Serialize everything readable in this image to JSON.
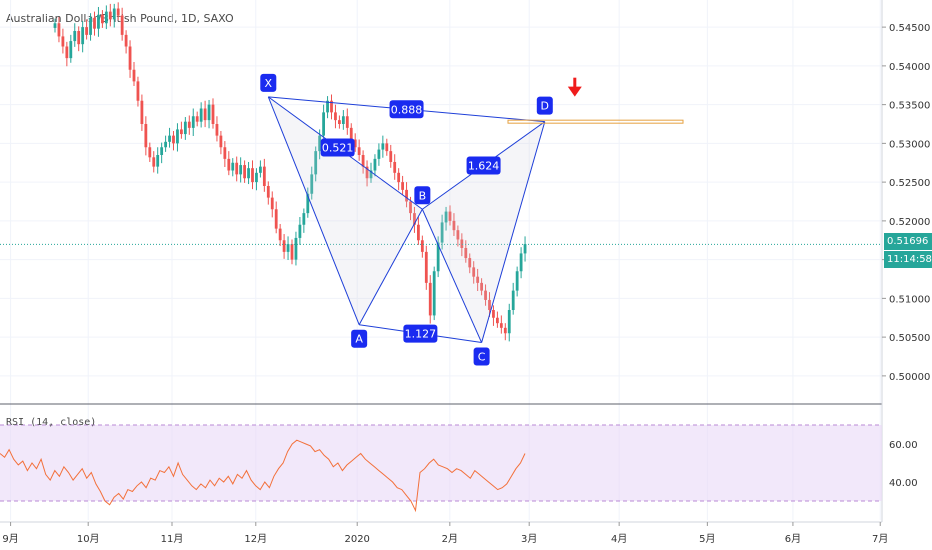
{
  "symbol_line": "Australian Dollar/British Pound, 1D, SAXO",
  "rsi_label": "RSI (14, close)",
  "price_tag": "0.51696",
  "countdown_tag": "11:14:58",
  "colors": {
    "up": "#26a69a",
    "down": "#ef5350",
    "pattern": "#1e3fd8",
    "pattern_label_bg": "#1a2bf0",
    "rsi_line": "#f3703a",
    "rsi_band": "#e9d8f7",
    "arrow": "#ef1c1c",
    "target_line": "#e5a040"
  },
  "chart_data": {
    "type": "candlestick",
    "price_axis": {
      "ylim": [
        0.4965,
        0.5485
      ],
      "ticks": [
        "0.50000",
        "0.50500",
        "0.51000",
        "0.51500",
        "0.52000",
        "0.52500",
        "0.53000",
        "0.53500",
        "0.54000",
        "0.54500"
      ]
    },
    "time_axis": {
      "labels": [
        "9月",
        "10月",
        "11月",
        "12月",
        "2020",
        "2月",
        "3月",
        "4月",
        "5月",
        "6月",
        "7月"
      ]
    },
    "current_price": 0.51696,
    "candles_close": [
      0.5455,
      0.5438,
      0.5425,
      0.541,
      0.5432,
      0.5445,
      0.5428,
      0.545,
      0.544,
      0.5462,
      0.5448,
      0.5466,
      0.5455,
      0.547,
      0.546,
      0.5474,
      0.5465,
      0.544,
      0.5425,
      0.5395,
      0.538,
      0.5355,
      0.5325,
      0.5295,
      0.5282,
      0.527,
      0.5285,
      0.5295,
      0.5302,
      0.531,
      0.53,
      0.5318,
      0.5312,
      0.5328,
      0.532,
      0.5335,
      0.5328,
      0.5345,
      0.533,
      0.535,
      0.5325,
      0.531,
      0.5295,
      0.528,
      0.5265,
      0.5275,
      0.526,
      0.5272,
      0.5255,
      0.5268,
      0.525,
      0.5262,
      0.527,
      0.5245,
      0.523,
      0.5215,
      0.519,
      0.5175,
      0.516,
      0.517,
      0.515,
      0.5178,
      0.5195,
      0.521,
      0.5235,
      0.526,
      0.529,
      0.531,
      0.534,
      0.5355,
      0.534,
      0.533,
      0.5325,
      0.5335,
      0.532,
      0.5305,
      0.5295,
      0.5285,
      0.527,
      0.5255,
      0.5265,
      0.528,
      0.5292,
      0.53,
      0.529,
      0.5276,
      0.5262,
      0.525,
      0.524,
      0.5225,
      0.521,
      0.5195,
      0.5175,
      0.516,
      0.512,
      0.5078,
      0.5135,
      0.5172,
      0.5198,
      0.5212,
      0.52,
      0.5188,
      0.5176,
      0.5165,
      0.5152,
      0.514,
      0.5128,
      0.512,
      0.511,
      0.5098,
      0.5085,
      0.5075,
      0.5068,
      0.5062,
      0.5055,
      0.5085,
      0.511,
      0.5135,
      0.5158,
      0.517
    ],
    "rsi": {
      "ticks": [
        "60.00",
        "40.00"
      ],
      "levels": [
        70,
        30
      ],
      "ylim": [
        20,
        80
      ],
      "values": [
        55,
        53,
        57,
        52,
        49,
        51,
        46,
        50,
        47,
        52,
        44,
        41,
        46,
        43,
        48,
        45,
        41,
        44,
        47,
        42,
        45,
        39,
        35,
        30,
        28,
        32,
        34,
        31,
        36,
        35,
        38,
        40,
        37,
        42,
        41,
        46,
        45,
        48,
        43,
        50,
        44,
        41,
        38,
        36,
        39,
        37,
        41,
        38,
        42,
        40,
        43,
        39,
        44,
        42,
        46,
        41,
        38,
        36,
        40,
        37,
        43,
        47,
        50,
        56,
        60,
        62,
        61,
        60,
        59,
        56,
        57,
        54,
        52,
        48,
        50,
        46,
        49,
        51,
        53,
        55,
        52,
        50,
        48,
        46,
        44,
        42,
        40,
        37,
        36,
        33,
        30,
        25,
        45,
        47,
        50,
        52,
        49,
        48,
        47,
        45,
        47,
        46,
        44,
        42,
        46,
        44,
        42,
        40,
        38,
        36,
        37,
        39,
        43,
        47,
        50,
        55
      ]
    },
    "harmonic_pattern": {
      "points": [
        {
          "label": "X",
          "index": 54,
          "price": 0.536
        },
        {
          "label": "A",
          "index": 77,
          "price": 0.5066
        },
        {
          "label": "B",
          "index": 93,
          "price": 0.5215
        },
        {
          "label": "C",
          "index": 108,
          "price": 0.5043
        },
        {
          "label": "D",
          "index": 124,
          "price": 0.5328
        }
      ],
      "ratios": {
        "XB": "0.521",
        "XD": "0.888",
        "BD": "1.624",
        "AC": "1.127"
      }
    },
    "target_level": 0.5328
  }
}
